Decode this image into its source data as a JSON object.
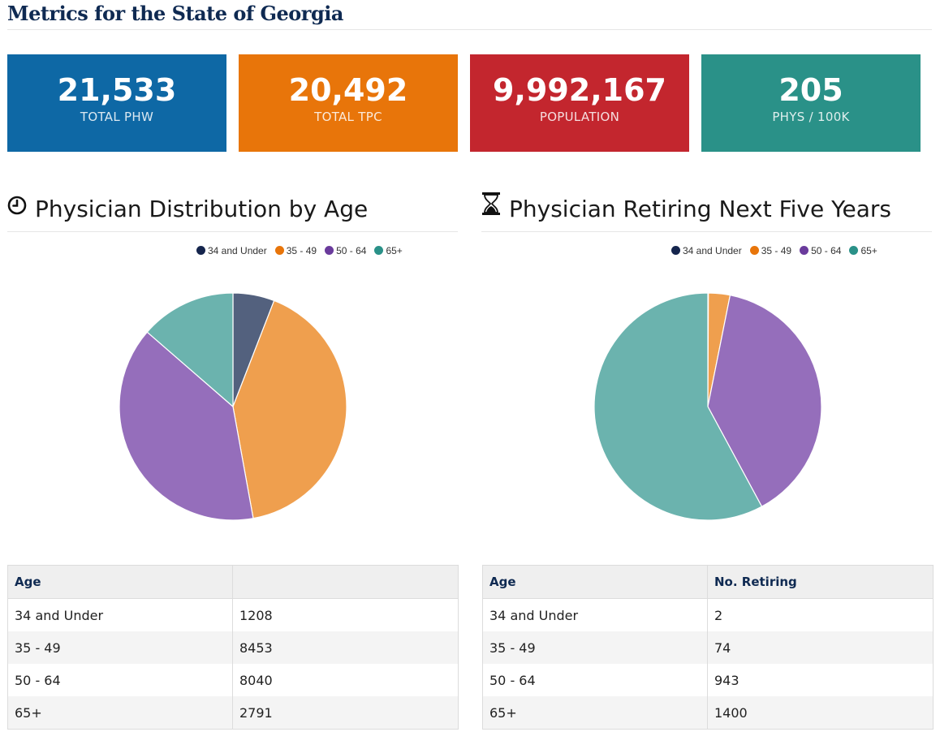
{
  "page": {
    "title": "Metrics for the State of Georgia"
  },
  "stats": [
    {
      "value": "21,533",
      "label": "TOTAL PHW",
      "color": "#0e68a5"
    },
    {
      "value": "20,492",
      "label": "TOTAL TPC",
      "color": "#e8750a"
    },
    {
      "value": "9,992,167",
      "label": "POPULATION",
      "color": "#c3262e"
    },
    {
      "value": "205",
      "label": "PHYS / 100K",
      "color": "#2a9188"
    }
  ],
  "left_section": {
    "title": "Physician Distribution by Age",
    "icon": "clock-icon"
  },
  "right_section": {
    "title": "Physician Retiring Next Five Years",
    "icon": "hourglass-icon"
  },
  "legend": [
    {
      "label": "34 and Under",
      "color": "#15254d"
    },
    {
      "label": "35 - 49",
      "color": "#e8750a"
    },
    {
      "label": "50 - 64",
      "color": "#6a3b9c"
    },
    {
      "label": "65+",
      "color": "#2a9188"
    }
  ],
  "slice_colors": [
    "#53617e",
    "#ef9f4e",
    "#956ebb",
    "#6bb3ae"
  ],
  "chart_data": [
    {
      "type": "pie",
      "categories": [
        "34 and Under",
        "35 - 49",
        "50 - 64",
        "65+"
      ],
      "values": [
        1208,
        8453,
        8040,
        2791
      ],
      "legend": "top"
    },
    {
      "type": "pie",
      "categories": [
        "34 and Under",
        "35 - 49",
        "50 - 64",
        "65+"
      ],
      "values": [
        2,
        74,
        943,
        1400
      ],
      "legend": "top"
    }
  ],
  "tables": {
    "left": {
      "headers": [
        "Age",
        ""
      ],
      "rows": [
        [
          "34 and Under",
          "1208"
        ],
        [
          "35 - 49",
          "8453"
        ],
        [
          "50 - 64",
          "8040"
        ],
        [
          "65+",
          "2791"
        ]
      ]
    },
    "right": {
      "headers": [
        "Age",
        "No. Retiring"
      ],
      "rows": [
        [
          "34 and Under",
          "2"
        ],
        [
          "35 - 49",
          "74"
        ],
        [
          "50 - 64",
          "943"
        ],
        [
          "65+",
          "1400"
        ]
      ]
    }
  }
}
